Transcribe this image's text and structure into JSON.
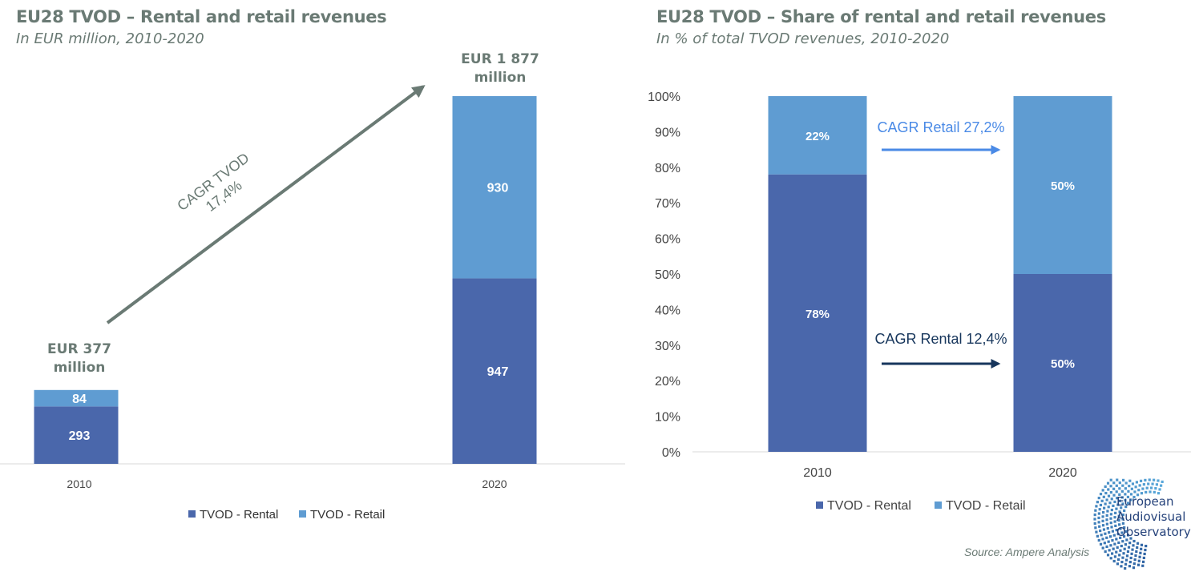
{
  "colors": {
    "rental": "#4a67ab",
    "retail": "#5f9cd2",
    "title": "#6a7a74",
    "cagr_tvod_arrow": "#6a7a74",
    "cagr_retail": "#4a8ae6",
    "cagr_rental": "#17365c"
  },
  "left": {
    "title": "EU28 TVOD – Rental and retail revenues",
    "subtitle": "In EUR million, 2010-2020",
    "total_2010_line1": "EUR 377",
    "total_2010_line2": "million",
    "total_2020_line1": "EUR 1 877",
    "total_2020_line2": "million",
    "cagr_line1": "CAGR TVOD",
    "cagr_line2": "17,4%",
    "legend": [
      "TVOD - Rental",
      "TVOD - Retail"
    ]
  },
  "right": {
    "title": "EU28 TVOD – Share of rental and retail revenues",
    "subtitle": "In % of total TVOD revenues, 2010-2020",
    "cagr_retail": "CAGR Retail 27,2%",
    "cagr_rental": "CAGR Rental 12,4%",
    "legend": [
      "TVOD - Rental",
      "TVOD - Retail"
    ]
  },
  "source": "Source: Ampere Analysis",
  "logo": {
    "line1": "European",
    "line2": "Audiovisual",
    "line3": "Observatory"
  },
  "chart_data": [
    {
      "type": "bar",
      "stacked": true,
      "title": "EU28 TVOD – Rental and retail revenues",
      "subtitle": "In EUR million, 2010-2020",
      "categories": [
        "2010",
        "2020"
      ],
      "series": [
        {
          "name": "TVOD - Rental",
          "values": [
            293,
            947
          ],
          "labels": [
            "293",
            "947"
          ]
        },
        {
          "name": "TVOD - Retail",
          "values": [
            84,
            930
          ],
          "labels": [
            "84",
            "930"
          ]
        }
      ],
      "totals": [
        377,
        1877
      ],
      "ylim": [
        0,
        1877
      ],
      "grid": false,
      "legend_position": "bottom"
    },
    {
      "type": "bar",
      "stacked": true,
      "title": "EU28 TVOD – Share of rental and retail revenues",
      "subtitle": "In % of total TVOD revenues, 2010-2020",
      "categories": [
        "2010",
        "2020"
      ],
      "series": [
        {
          "name": "TVOD - Rental",
          "values": [
            78,
            50
          ],
          "labels": [
            "78%",
            "50%"
          ]
        },
        {
          "name": "TVOD - Retail",
          "values": [
            22,
            50
          ],
          "labels": [
            "22%",
            "50%"
          ]
        }
      ],
      "ylim": [
        0,
        100
      ],
      "yticks": [
        "0%",
        "10%",
        "20%",
        "30%",
        "40%",
        "50%",
        "60%",
        "70%",
        "80%",
        "90%",
        "100%"
      ],
      "grid": false,
      "legend_position": "bottom"
    }
  ]
}
